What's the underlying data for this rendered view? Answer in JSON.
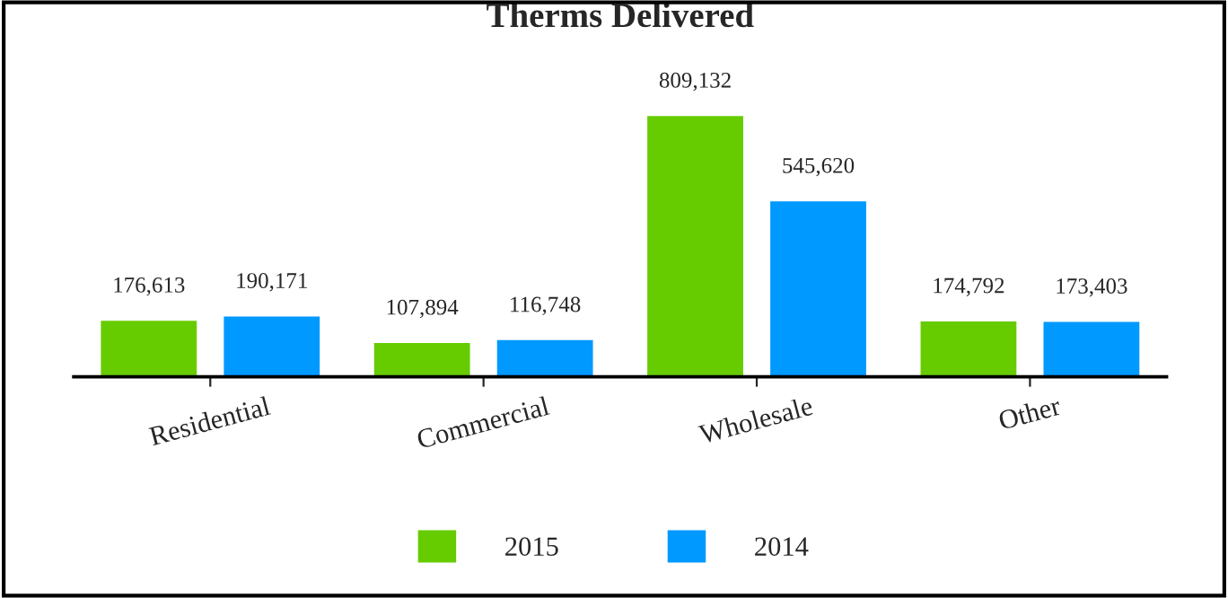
{
  "chart_data": {
    "type": "bar",
    "title": "Therms Delivered",
    "categories": [
      "Residential",
      "Commercial",
      "Wholesale",
      "Other"
    ],
    "series": [
      {
        "name": "2015",
        "color": "#66cc00",
        "values": [
          176613,
          107894,
          809132,
          174792
        ],
        "value_labels": [
          "176,613",
          "107,894",
          "809,132",
          "174,792"
        ]
      },
      {
        "name": "2014",
        "color": "#0099ff",
        "values": [
          190171,
          116748,
          545620,
          173403
        ],
        "value_labels": [
          "190,171",
          "116,748",
          "545,620",
          "173,403"
        ]
      }
    ],
    "legend": "bottom",
    "grid": false,
    "tick_labels": "x"
  }
}
